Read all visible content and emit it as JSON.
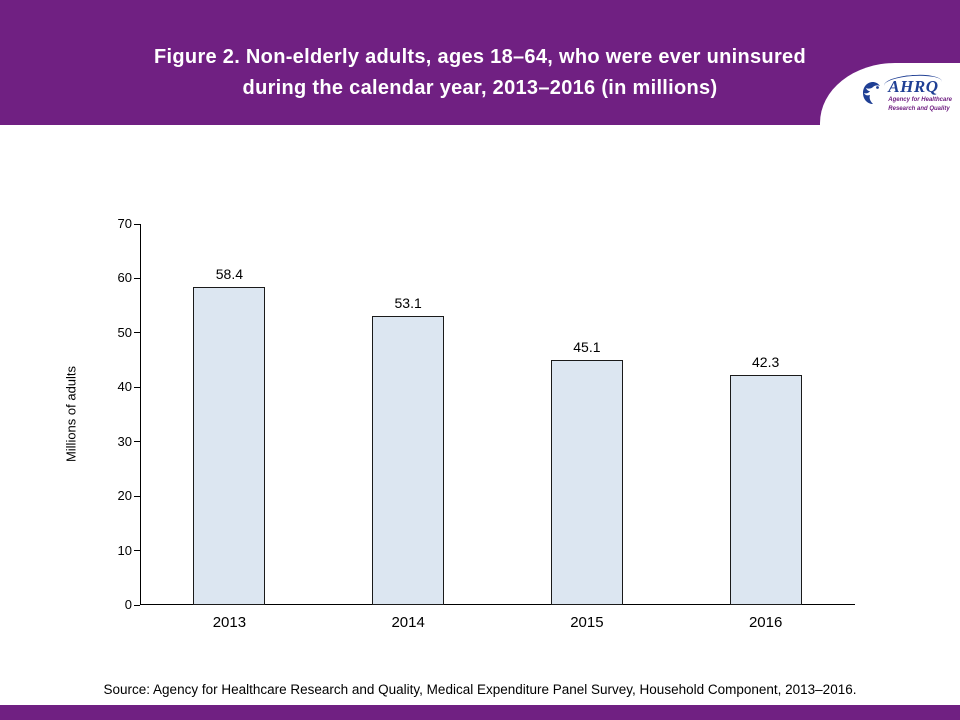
{
  "header": {
    "title_line1": "Figure 2. Non-elderly adults, ages 18–64, who were ever uninsured",
    "title_line2": "during the calendar year, 2013–2016 (in millions)",
    "logo": {
      "name": "AHRQ",
      "tagline_line1": "Agency for Healthcare",
      "tagline_line2": "Research and Quality"
    }
  },
  "chart_data": {
    "type": "bar",
    "categories": [
      "2013",
      "2014",
      "2015",
      "2016"
    ],
    "values": [
      58.4,
      53.1,
      45.1,
      42.3
    ],
    "value_labels": [
      "58.4",
      "53.1",
      "45.1",
      "42.3"
    ],
    "title": "Figure 2. Non-elderly adults, ages 18–64, who were ever uninsured during the calendar year, 2013–2016 (in millions)",
    "xlabel": "",
    "ylabel": "Millions of adults",
    "ylim": [
      0,
      70
    ],
    "ytick_interval": 10,
    "grid": false,
    "legend": false,
    "bar_fill_color": "#dce6f1",
    "bar_border_color": "#1a1a1a"
  },
  "footer": {
    "source": "Source: Agency for Healthcare Research and Quality, Medical Expenditure Panel Survey, Household Component, 2013–2016."
  },
  "colors": {
    "header_purple": "#702082",
    "logo_blue": "#1f3f94"
  }
}
